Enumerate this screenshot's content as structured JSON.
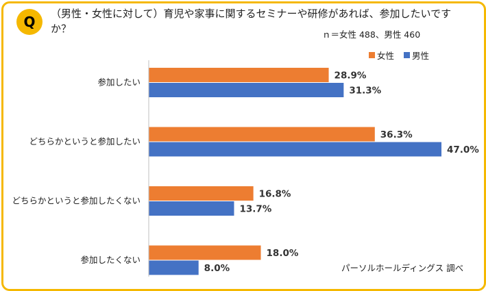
{
  "badge": "Q",
  "question": "（男性・女性に対して）育児や家事に関するセミナーや研修があれば、参加したいですか？",
  "sample": "ｎ＝女性 488、男性 460",
  "source": "パーソルホールディングス 調べ",
  "colors": {
    "women": "#ed7d31",
    "men": "#4472c4",
    "frame": "#f5b800"
  },
  "chart_data": {
    "type": "bar",
    "orientation": "horizontal",
    "categories": [
      "参加したい",
      "どちらかというと参加したい",
      "どちらかというと参加したくない",
      "参加したくない"
    ],
    "series": [
      {
        "name": "女性",
        "values": [
          28.9,
          36.3,
          16.8,
          18.0
        ],
        "labels": [
          "28.9%",
          "36.3%",
          "16.8%",
          "18.0%"
        ]
      },
      {
        "name": "男性",
        "values": [
          31.3,
          47.0,
          13.7,
          8.0
        ],
        "labels": [
          "31.3%",
          "47.0%",
          "13.7%",
          "8.0%"
        ]
      }
    ],
    "xlim": [
      0,
      47.0
    ],
    "legend_position": "top-right",
    "grid": false
  }
}
